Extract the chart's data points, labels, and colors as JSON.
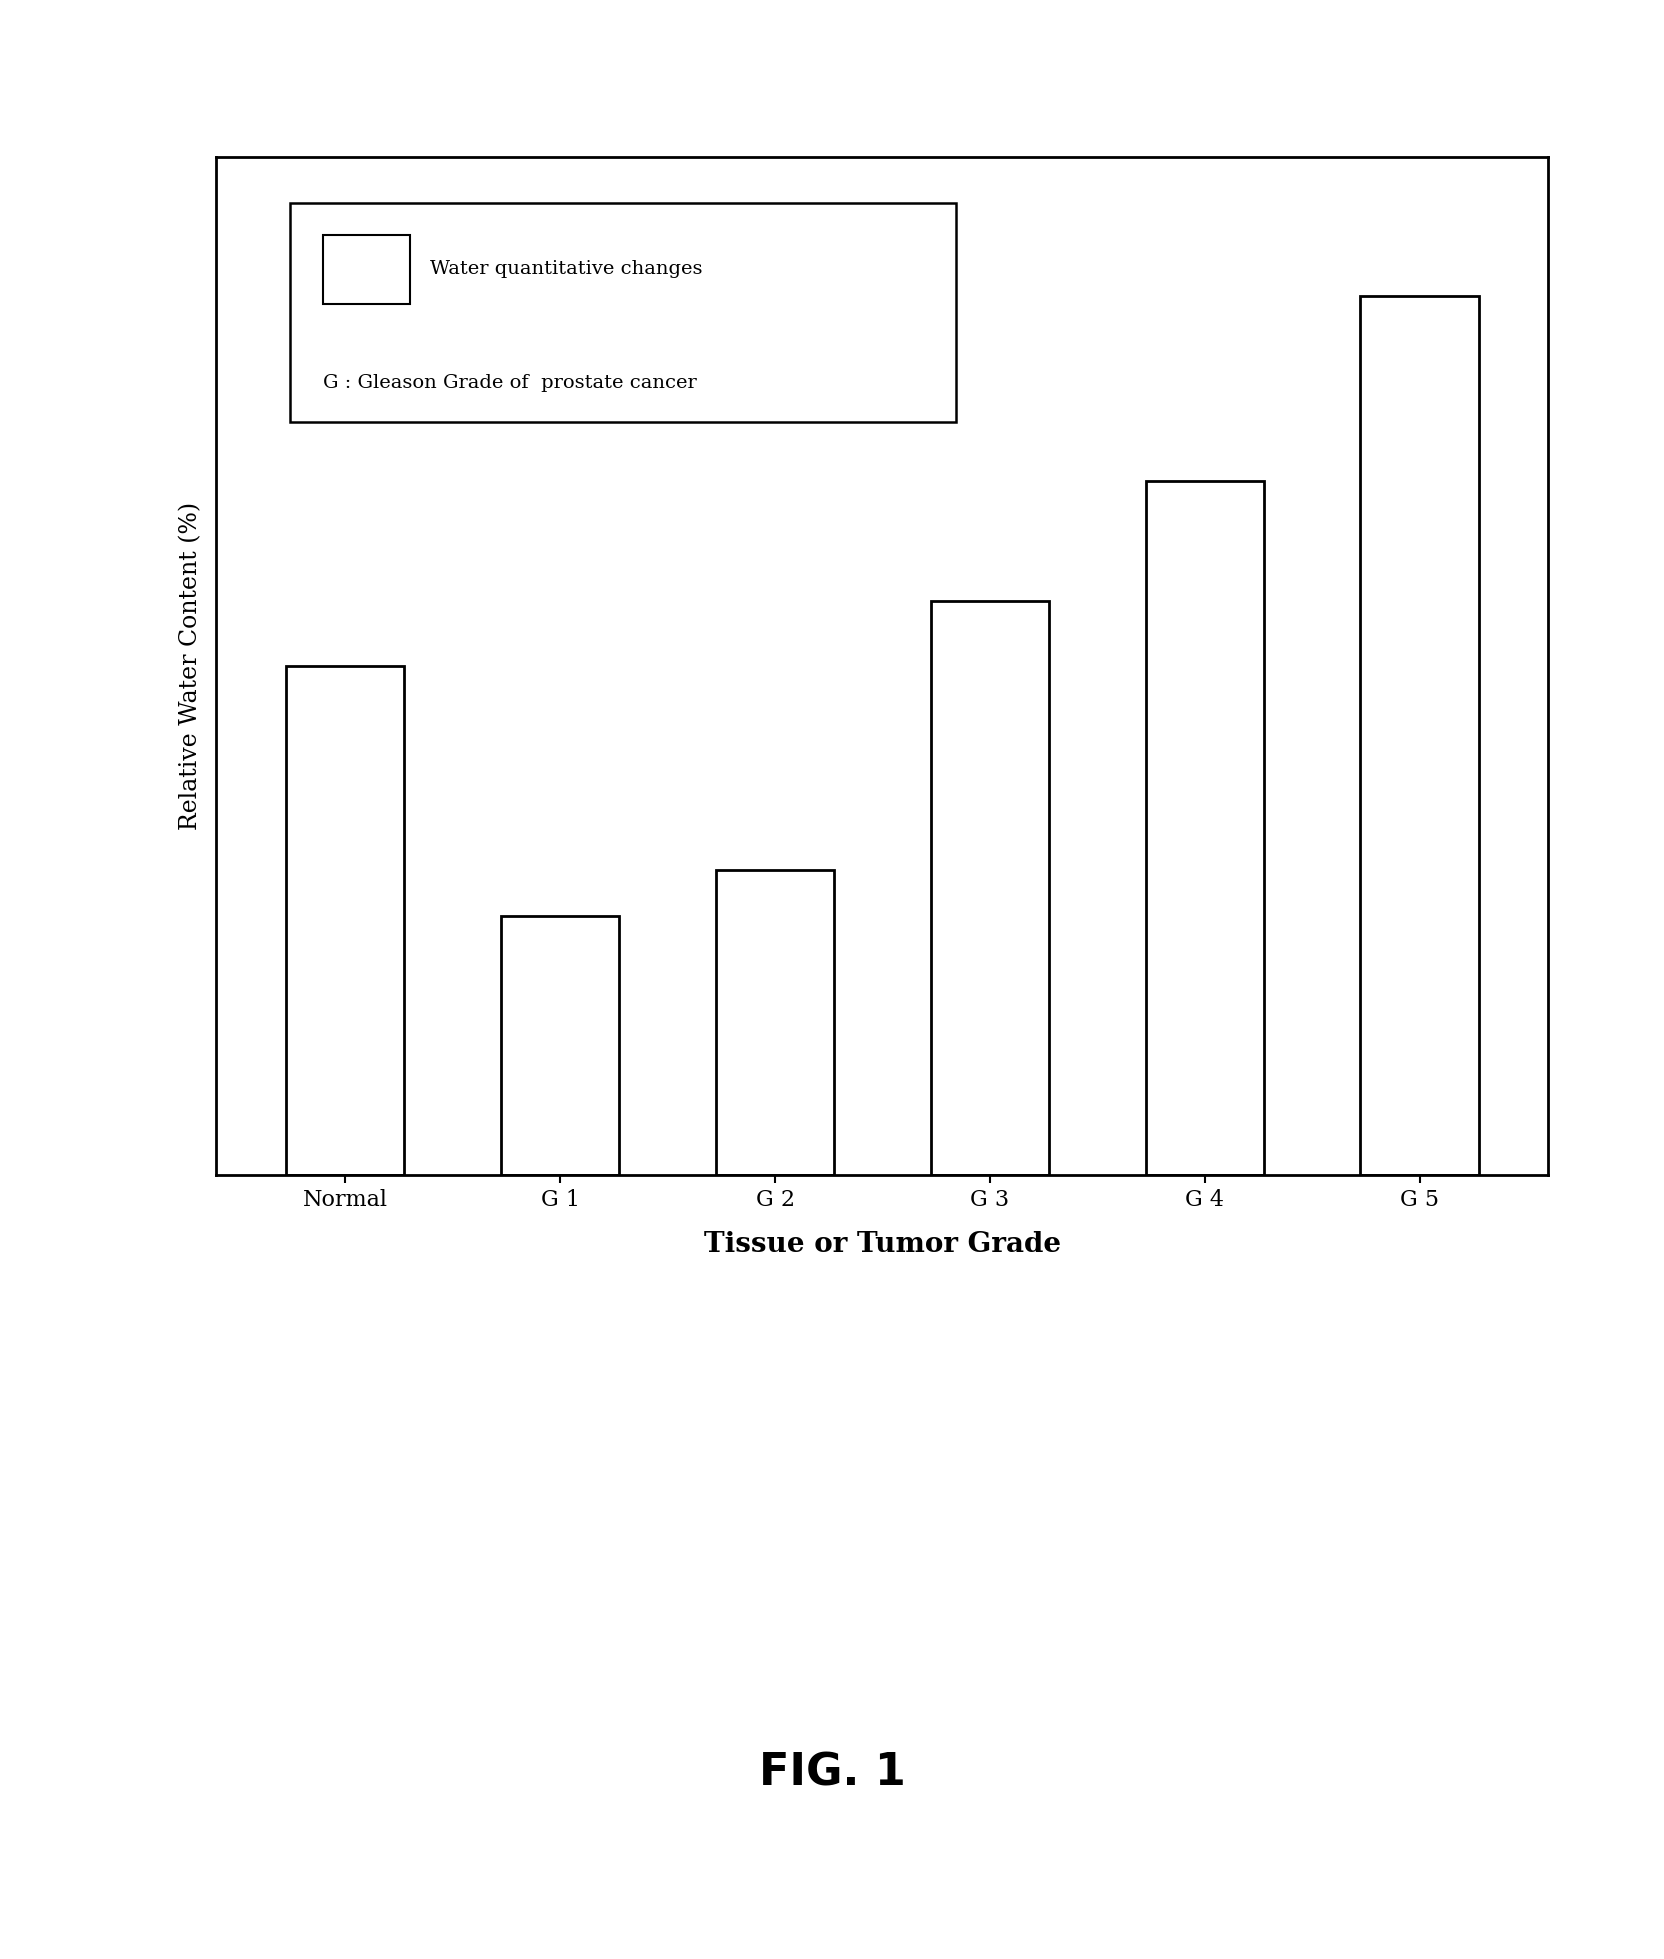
{
  "categories": [
    "Normal",
    "G 1",
    "G 2",
    "G 3",
    "G 4",
    "G 5"
  ],
  "values": [
    55,
    28,
    33,
    62,
    75,
    95
  ],
  "bar_color": "#ffffff",
  "bar_edgecolor": "#000000",
  "bar_linewidth": 2.0,
  "ylabel": "Relative Water Content (%)",
  "xlabel": "Tissue or Tumor Grade",
  "xlabel_fontsize": 20,
  "ylabel_fontsize": 17,
  "tick_fontsize": 16,
  "legend_line1": "Water quantitative changes",
  "legend_line2": "G : Gleason Grade of  prostate cancer",
  "fig_caption": "FIG. 1",
  "ylim": [
    0,
    110
  ],
  "background_color": "#ffffff",
  "axes_linewidth": 2.0,
  "bar_width": 0.55,
  "legend_fontsize": 14,
  "caption_fontsize": 32
}
